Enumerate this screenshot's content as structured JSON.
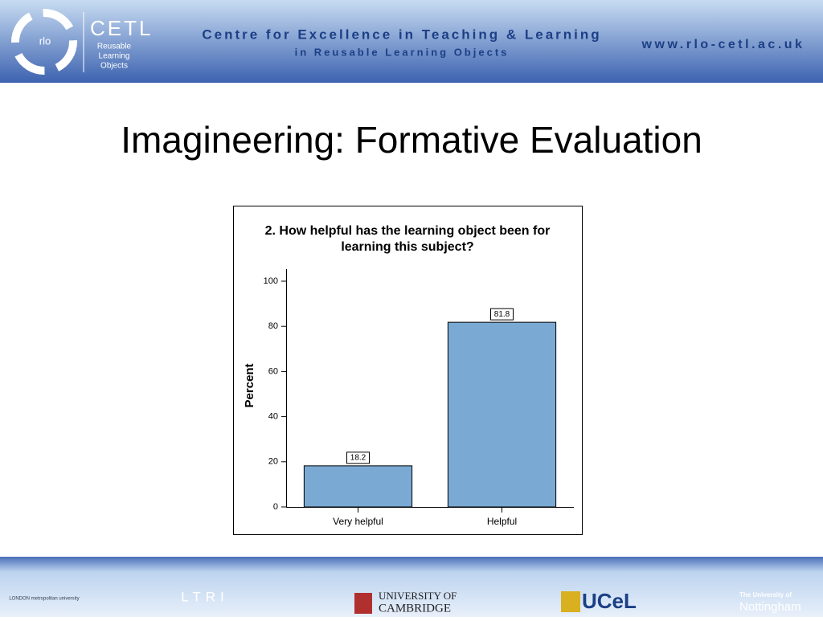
{
  "header": {
    "logo_mark": "rlo",
    "logo_name": "CETL",
    "logo_lines": [
      "Reusable",
      "Learning",
      "Objects"
    ],
    "title_line1": "Centre for Excellence in Teaching & Learning",
    "title_line2": "in Reusable Learning Objects",
    "url": "www.rlo-cetl.ac.uk"
  },
  "slide_title": "Imagineering: Formative Evaluation",
  "chart_data": {
    "type": "bar",
    "title": "2. How helpful has the learning object been for learning this subject?",
    "y_label": "Percent",
    "categories": [
      "Very helpful",
      "Helpful"
    ],
    "values": [
      18.2,
      81.8
    ],
    "color": "#7aaad4",
    "ylim": [
      0,
      100
    ],
    "yticks": [
      0,
      20,
      40,
      60,
      80,
      100
    ]
  },
  "footer": {
    "logos": [
      "LONDON metropolitan university",
      "LTRI",
      "UNIVERSITY OF",
      "CAMBRIDGE",
      "UCeL",
      "The University of",
      "Nottingham"
    ]
  }
}
